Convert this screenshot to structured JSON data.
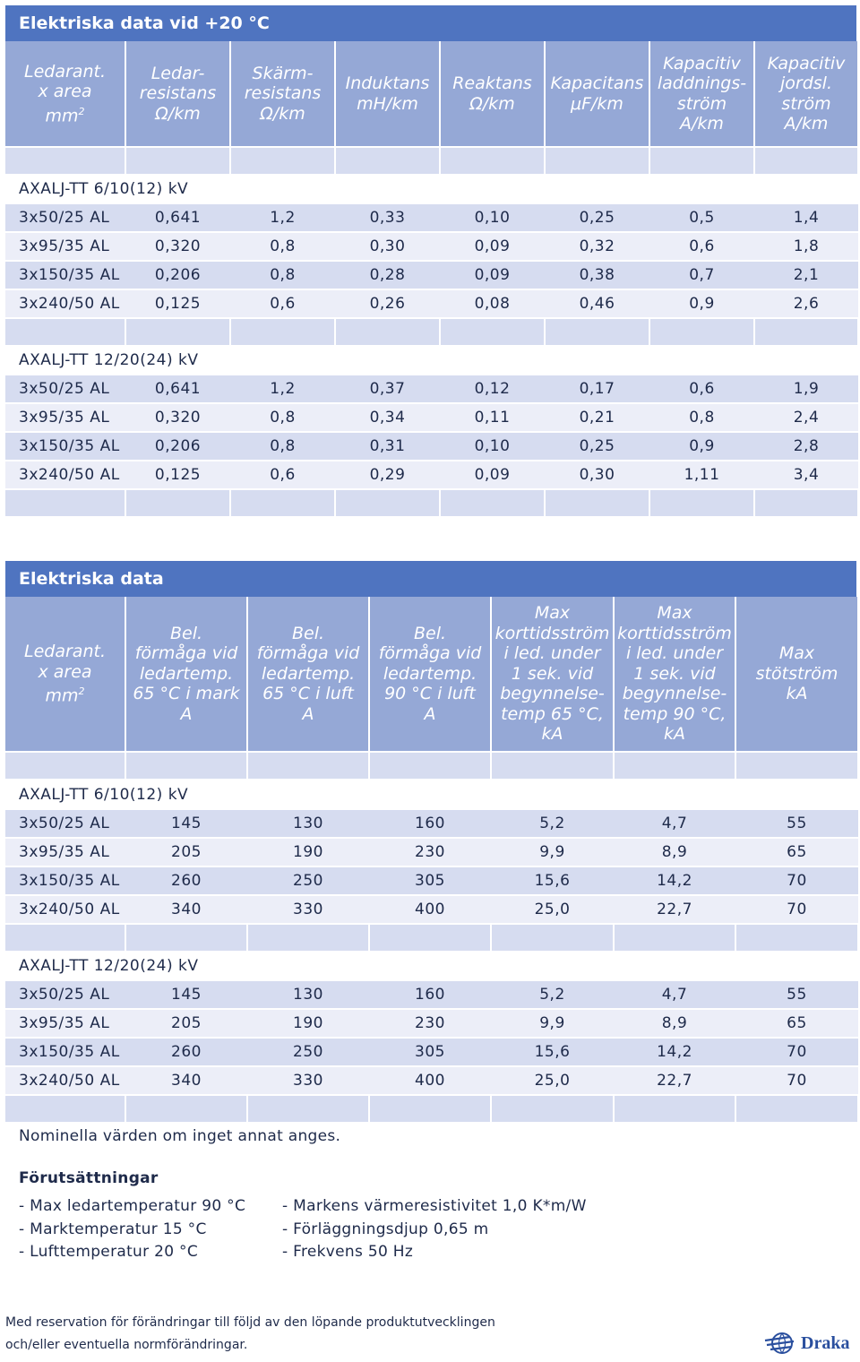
{
  "table1": {
    "title": "Elektriska data vid +20 °C",
    "headers": [
      {
        "main": "Ledarant.\nx area\nmm",
        "sup": "2"
      },
      {
        "main": "Ledar-\nresistans\nΩ/km",
        "sup": ""
      },
      {
        "main": "Skärm-\nresistans\nΩ/km",
        "sup": ""
      },
      {
        "main": "Induktans\nmH/km",
        "sup": ""
      },
      {
        "main": "Reaktans\nΩ/km",
        "sup": ""
      },
      {
        "main": "Kapacitans\nμF/km",
        "sup": ""
      },
      {
        "main": "Kapacitiv\nladdnings-\nström\nA/km",
        "sup": ""
      },
      {
        "main": "Kapacitiv\njordsl.\nström\nA/km",
        "sup": ""
      }
    ],
    "groups": [
      {
        "label": "AXALJ-TT 6/10(12) kV",
        "rows": [
          [
            "3x50/25 AL",
            "0,641",
            "1,2",
            "0,33",
            "0,10",
            "0,25",
            "0,5",
            "1,4"
          ],
          [
            "3x95/35 AL",
            "0,320",
            "0,8",
            "0,30",
            "0,09",
            "0,32",
            "0,6",
            "1,8"
          ],
          [
            "3x150/35 AL",
            "0,206",
            "0,8",
            "0,28",
            "0,09",
            "0,38",
            "0,7",
            "2,1"
          ],
          [
            "3x240/50 AL",
            "0,125",
            "0,6",
            "0,26",
            "0,08",
            "0,46",
            "0,9",
            "2,6"
          ]
        ]
      },
      {
        "label": "AXALJ-TT 12/20(24) kV",
        "rows": [
          [
            "3x50/25 AL",
            "0,641",
            "1,2",
            "0,37",
            "0,12",
            "0,17",
            "0,6",
            "1,9"
          ],
          [
            "3x95/35 AL",
            "0,320",
            "0,8",
            "0,34",
            "0,11",
            "0,21",
            "0,8",
            "2,4"
          ],
          [
            "3x150/35 AL",
            "0,206",
            "0,8",
            "0,31",
            "0,10",
            "0,25",
            "0,9",
            "2,8"
          ],
          [
            "3x240/50 AL",
            "0,125",
            "0,6",
            "0,29",
            "0,09",
            "0,30",
            "1,11",
            "3,4"
          ]
        ]
      }
    ]
  },
  "table2": {
    "title": "Elektriska data",
    "headers": [
      {
        "main": "Ledarant.\nx area\nmm",
        "sup": "2"
      },
      {
        "main": "Bel.\nförmåga vid\nledartemp.\n65 °C i mark\nA",
        "sup": ""
      },
      {
        "main": "Bel.\nförmåga vid\nledartemp.\n65 °C i luft\nA",
        "sup": ""
      },
      {
        "main": "Bel.\nförmåga vid\nledartemp.\n90 °C i luft\nA",
        "sup": ""
      },
      {
        "main": "Max\nkorttidsström\ni led. under\n1 sek. vid\nbegynnelse-\ntemp 65 °C,\nkA",
        "sup": ""
      },
      {
        "main": "Max\nkorttidsström\ni led. under\n1 sek. vid\nbegynnelse-\ntemp 90 °C,\nkA",
        "sup": ""
      },
      {
        "main": "Max\nstötström\nkA",
        "sup": ""
      }
    ],
    "groups": [
      {
        "label": "AXALJ-TT 6/10(12) kV",
        "rows": [
          [
            "3x50/25 AL",
            "145",
            "130",
            "160",
            "5,2",
            "4,7",
            "55"
          ],
          [
            "3x95/35 AL",
            "205",
            "190",
            "230",
            "9,9",
            "8,9",
            "65"
          ],
          [
            "3x150/35 AL",
            "260",
            "250",
            "305",
            "15,6",
            "14,2",
            "70"
          ],
          [
            "3x240/50 AL",
            "340",
            "330",
            "400",
            "25,0",
            "22,7",
            "70"
          ]
        ]
      },
      {
        "label": "AXALJ-TT 12/20(24) kV",
        "rows": [
          [
            "3x50/25 AL",
            "145",
            "130",
            "160",
            "5,2",
            "4,7",
            "55"
          ],
          [
            "3x95/35 AL",
            "205",
            "190",
            "230",
            "9,9",
            "8,9",
            "65"
          ],
          [
            "3x150/35 AL",
            "260",
            "250",
            "305",
            "15,6",
            "14,2",
            "70"
          ],
          [
            "3x240/50 AL",
            "340",
            "330",
            "400",
            "25,0",
            "22,7",
            "70"
          ]
        ]
      }
    ]
  },
  "nominal_note": "Nominella värden om inget annat anges.",
  "conditions": {
    "title": "Förutsättningar",
    "left": [
      "- Max ledartemperatur 90 °C",
      "- Marktemperatur 15 °C",
      "- Lufttemperatur 20 °C"
    ],
    "right": [
      "- Markens värmeresistivitet 1,0 K*m/W",
      "- Förläggningsdjup 0,65 m",
      "- Frekvens 50 Hz"
    ]
  },
  "footer": {
    "line1": "Med reservation för förändringar till följd av den löpande produktutvecklingen",
    "line2": "och/eller eventuella normförändringar.",
    "logo_text": "Draka",
    "logo_icon": "globe-icon"
  },
  "colors": {
    "title_bar": "#4f74c0",
    "header": "#95a8d6",
    "band_dark": "#d6dcf0",
    "band_light": "#eceef8",
    "text": "#1e2a4a"
  }
}
